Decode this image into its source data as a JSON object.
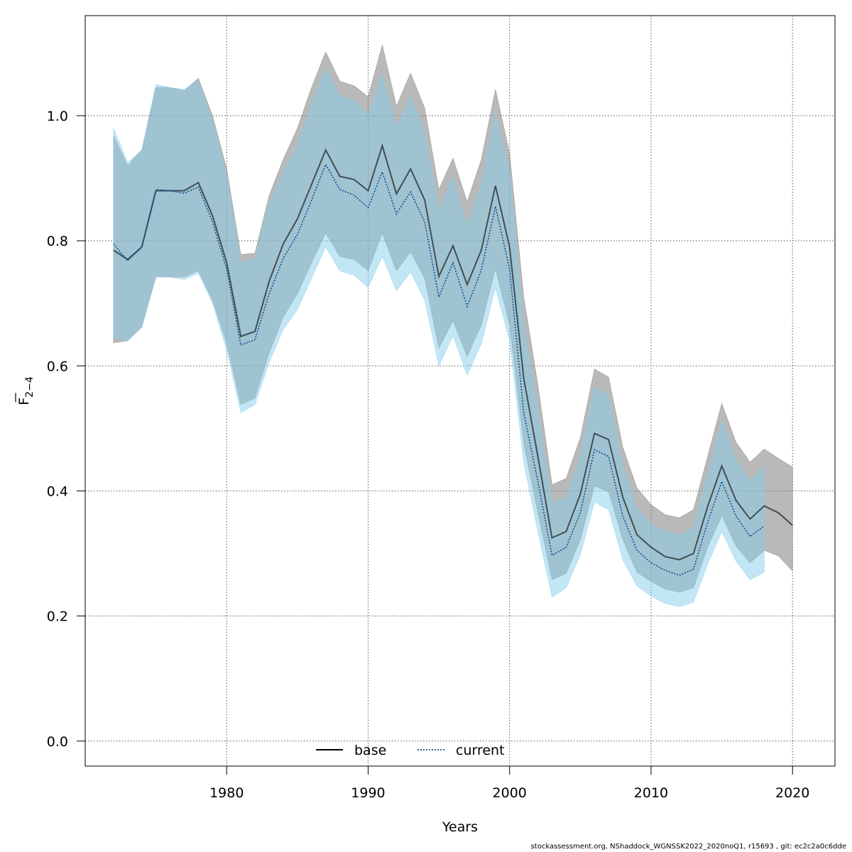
{
  "chart_data": {
    "type": "line",
    "xlabel": "Years",
    "ylabel": {
      "main": "F",
      "sub": "2−4"
    },
    "xlim": [
      1970,
      2023
    ],
    "ylim": [
      -0.04,
      1.16
    ],
    "xticks": [
      1980,
      1990,
      2000,
      2010,
      2020
    ],
    "yticks": [
      0.0,
      0.2,
      0.4,
      0.6,
      0.8,
      1.0
    ],
    "xtick_labels": [
      "1980",
      "1990",
      "2000",
      "2010",
      "2020"
    ],
    "ytick_labels": [
      "0.0",
      "0.2",
      "0.4",
      "0.6",
      "0.8",
      "1.0"
    ],
    "grid": true,
    "legend_position": "bottom-center",
    "series": [
      {
        "name": "base",
        "line_color": "#000000",
        "band_color": "#808080",
        "x": [
          1972,
          1973,
          1974,
          1975,
          1976,
          1977,
          1978,
          1979,
          1980,
          1981,
          1982,
          1983,
          1984,
          1985,
          1986,
          1987,
          1988,
          1989,
          1990,
          1991,
          1992,
          1993,
          1994,
          1995,
          1996,
          1997,
          1998,
          1999,
          2000,
          2001,
          2002,
          2003,
          2004,
          2005,
          2006,
          2007,
          2008,
          2009,
          2010,
          2011,
          2012,
          2013,
          2014,
          2015,
          2016,
          2017,
          2018,
          2019,
          2020
        ],
        "values": [
          0.785,
          0.77,
          0.79,
          0.88,
          0.88,
          0.88,
          0.893,
          0.84,
          0.765,
          0.647,
          0.655,
          0.735,
          0.795,
          0.835,
          0.89,
          0.945,
          0.903,
          0.898,
          0.88,
          0.952,
          0.875,
          0.915,
          0.865,
          0.743,
          0.792,
          0.73,
          0.785,
          0.888,
          0.79,
          0.58,
          0.455,
          0.325,
          0.335,
          0.395,
          0.492,
          0.482,
          0.39,
          0.33,
          0.31,
          0.295,
          0.29,
          0.3,
          0.375,
          0.44,
          0.385,
          0.355,
          0.376,
          0.365,
          0.345
        ],
        "upper": [
          0.968,
          0.92,
          0.945,
          1.045,
          1.045,
          1.04,
          1.06,
          1.0,
          0.915,
          0.778,
          0.78,
          0.872,
          0.93,
          0.98,
          1.045,
          1.102,
          1.055,
          1.048,
          1.03,
          1.113,
          1.015,
          1.068,
          1.012,
          0.882,
          0.932,
          0.862,
          0.93,
          1.042,
          0.94,
          0.71,
          0.57,
          0.41,
          0.42,
          0.485,
          0.595,
          0.582,
          0.47,
          0.405,
          0.378,
          0.362,
          0.357,
          0.37,
          0.455,
          0.54,
          0.478,
          0.446,
          0.467,
          0.452,
          0.438
        ],
        "lower": [
          0.637,
          0.64,
          0.662,
          0.742,
          0.742,
          0.742,
          0.752,
          0.705,
          0.636,
          0.538,
          0.548,
          0.62,
          0.678,
          0.715,
          0.765,
          0.812,
          0.775,
          0.77,
          0.752,
          0.812,
          0.752,
          0.782,
          0.74,
          0.628,
          0.672,
          0.615,
          0.665,
          0.755,
          0.665,
          0.475,
          0.365,
          0.258,
          0.268,
          0.322,
          0.408,
          0.398,
          0.322,
          0.27,
          0.255,
          0.243,
          0.238,
          0.245,
          0.31,
          0.36,
          0.312,
          0.285,
          0.305,
          0.296,
          0.272
        ]
      },
      {
        "name": "current",
        "line_color": "#0a4f8f",
        "band_color": "#87ceeb",
        "x": [
          1972,
          1973,
          1974,
          1975,
          1976,
          1977,
          1978,
          1979,
          1980,
          1981,
          1982,
          1983,
          1984,
          1985,
          1986,
          1987,
          1988,
          1989,
          1990,
          1991,
          1992,
          1993,
          1994,
          1995,
          1996,
          1997,
          1998,
          1999,
          2000,
          2001,
          2002,
          2003,
          2004,
          2005,
          2006,
          2007,
          2008,
          2009,
          2010,
          2011,
          2012,
          2013,
          2014,
          2015,
          2016,
          2017,
          2018
        ],
        "values": [
          0.795,
          0.768,
          0.79,
          0.882,
          0.88,
          0.876,
          0.886,
          0.83,
          0.755,
          0.633,
          0.642,
          0.715,
          0.772,
          0.81,
          0.865,
          0.922,
          0.882,
          0.873,
          0.853,
          0.91,
          0.843,
          0.878,
          0.83,
          0.71,
          0.765,
          0.695,
          0.753,
          0.855,
          0.755,
          0.525,
          0.415,
          0.297,
          0.31,
          0.365,
          0.466,
          0.455,
          0.36,
          0.305,
          0.285,
          0.273,
          0.265,
          0.275,
          0.35,
          0.415,
          0.36,
          0.327,
          0.344
        ],
        "upper": [
          0.98,
          0.925,
          0.945,
          1.05,
          1.045,
          1.042,
          1.057,
          0.992,
          0.905,
          0.765,
          0.77,
          0.86,
          0.91,
          0.955,
          1.02,
          1.075,
          1.032,
          1.025,
          1.002,
          1.065,
          0.982,
          1.03,
          0.975,
          0.848,
          0.903,
          0.825,
          0.892,
          1.005,
          0.91,
          0.665,
          0.53,
          0.38,
          0.39,
          0.455,
          0.567,
          0.552,
          0.44,
          0.373,
          0.348,
          0.336,
          0.33,
          0.34,
          0.425,
          0.513,
          0.45,
          0.416,
          0.44
        ],
        "lower": [
          0.645,
          0.64,
          0.662,
          0.742,
          0.742,
          0.738,
          0.748,
          0.7,
          0.625,
          0.525,
          0.538,
          0.605,
          0.658,
          0.69,
          0.74,
          0.79,
          0.752,
          0.745,
          0.725,
          0.775,
          0.72,
          0.75,
          0.705,
          0.6,
          0.648,
          0.585,
          0.635,
          0.725,
          0.64,
          0.445,
          0.335,
          0.23,
          0.245,
          0.298,
          0.382,
          0.37,
          0.29,
          0.248,
          0.232,
          0.22,
          0.215,
          0.222,
          0.283,
          0.335,
          0.288,
          0.258,
          0.27
        ]
      }
    ]
  },
  "footer_text": "stockassessment.org, NShaddock_WGNSSK2022_2020noQ1, r15693 , git: ec2c2a0c6dde"
}
